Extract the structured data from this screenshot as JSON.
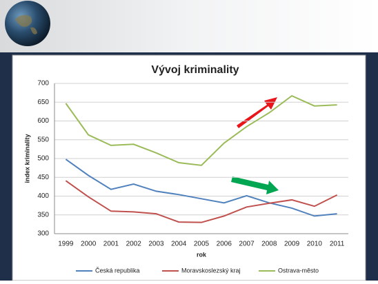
{
  "chart_data": {
    "type": "line",
    "title": "Vývoj kriminality",
    "x_label": "rok",
    "y_label": "index kriminality",
    "categories": [
      "1999",
      "2000",
      "2001",
      "2002",
      "2003",
      "2004",
      "2005",
      "2006",
      "2007",
      "2008",
      "2009",
      "2010",
      "2011"
    ],
    "series": [
      {
        "name": "Česká republika",
        "color": "#4f81bd",
        "values": [
          498,
          455,
          418,
          432,
          413,
          404,
          393,
          382,
          401,
          382,
          368,
          347,
          353
        ]
      },
      {
        "name": "Moravskoslezský kraj",
        "color": "#c0504d",
        "values": [
          441,
          398,
          360,
          358,
          353,
          331,
          330,
          347,
          371,
          381,
          390,
          373,
          403
        ]
      },
      {
        "name": "Ostrava-město",
        "color": "#9bbb59",
        "values": [
          647,
          563,
          535,
          538,
          515,
          489,
          482,
          541,
          585,
          622,
          667,
          640,
          643
        ]
      }
    ],
    "ylim": [
      300,
      700
    ],
    "yticks": [
      300,
      350,
      400,
      450,
      500,
      550,
      600,
      650,
      700
    ],
    "grid": true,
    "legend": "bottom"
  }
}
